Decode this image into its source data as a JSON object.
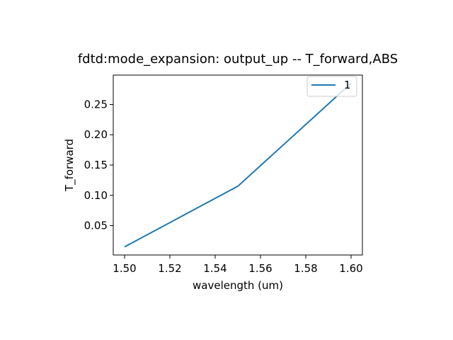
{
  "chart_data": {
    "type": "line",
    "title": "fdtd:mode_expansion: output_up -- T_forward,ABS",
    "xlabel": "wavelength (um)",
    "ylabel": "T_forward",
    "x": [
      1.5,
      1.55,
      1.6
    ],
    "series": [
      {
        "name": "1",
        "values": [
          0.015,
          0.115,
          0.285
        ],
        "color": "#1f77b4"
      }
    ],
    "xlim": [
      1.495,
      1.605
    ],
    "ylim": [
      0.0015,
      0.2985
    ],
    "xticks": [
      1.5,
      1.52,
      1.54,
      1.56,
      1.58,
      1.6
    ],
    "xtick_labels": [
      "1.50",
      "1.52",
      "1.54",
      "1.56",
      "1.58",
      "1.60"
    ],
    "yticks": [
      0.05,
      0.1,
      0.15,
      0.2,
      0.25
    ],
    "ytick_labels": [
      "0.05",
      "0.10",
      "0.15",
      "0.20",
      "0.25"
    ],
    "grid": false,
    "legend_position": "top-right"
  }
}
